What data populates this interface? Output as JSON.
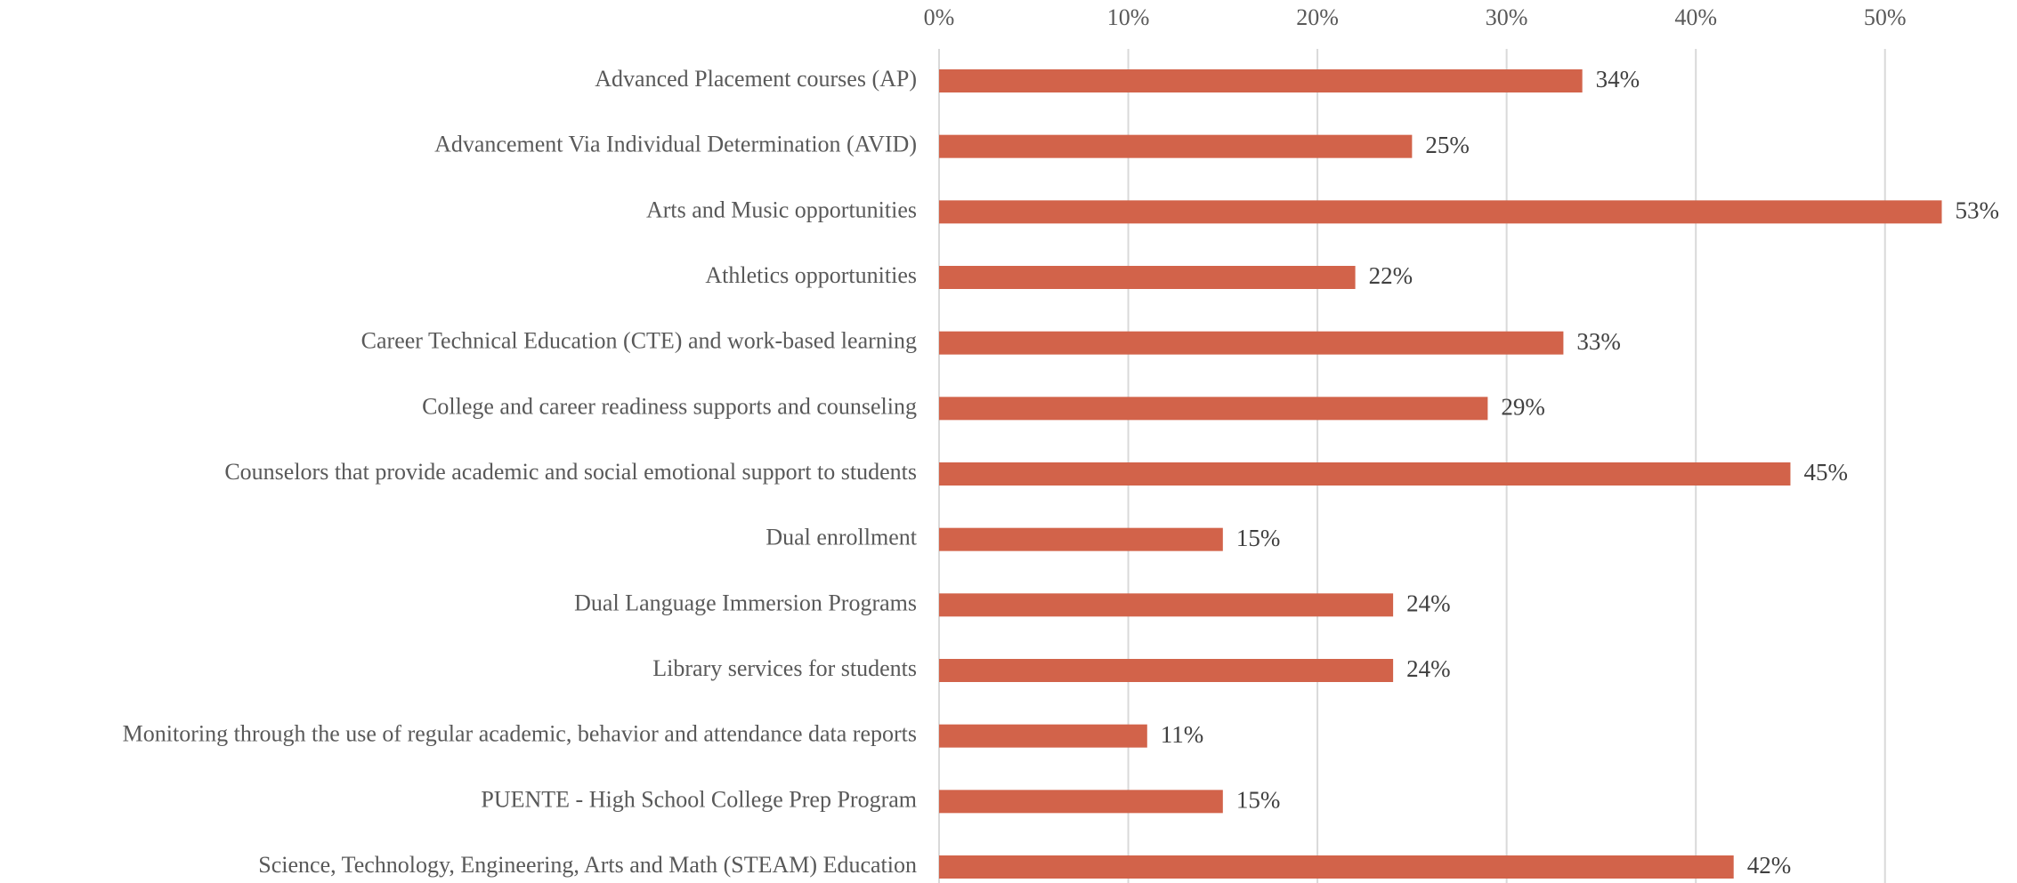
{
  "chart_data": {
    "type": "barh",
    "categories": [
      "Advanced Placement courses (AP)",
      "Advancement Via Individual Determination (AVID)",
      "Arts and Music opportunities",
      "Athletics opportunities",
      "Career Technical Education (CTE) and work-based learning",
      "College and career readiness supports and counseling",
      "Counselors that provide academic and social emotional support to students",
      "Dual enrollment",
      "Dual Language Immersion Programs",
      "Library services for students",
      "Monitoring through the use of regular academic, behavior and attendance data reports",
      "PUENTE - High School College Prep Program",
      "Science, Technology, Engineering, Arts and Math (STEAM) Education"
    ],
    "values": [
      34,
      25,
      53,
      22,
      33,
      29,
      45,
      15,
      24,
      24,
      11,
      15,
      42
    ],
    "value_labels": [
      "34%",
      "25%",
      "53%",
      "22%",
      "33%",
      "29%",
      "45%",
      "15%",
      "24%",
      "24%",
      "11%",
      "15%",
      "42%"
    ],
    "color": "#d2634a",
    "xlim": [
      0,
      55
    ],
    "xticks": [
      {
        "value": 0,
        "label": "0%"
      },
      {
        "value": 10,
        "label": "10%"
      },
      {
        "value": 20,
        "label": "20%"
      },
      {
        "value": 30,
        "label": "30%"
      },
      {
        "value": 40,
        "label": "40%"
      },
      {
        "value": 50,
        "label": "50%"
      }
    ],
    "grid": true
  }
}
